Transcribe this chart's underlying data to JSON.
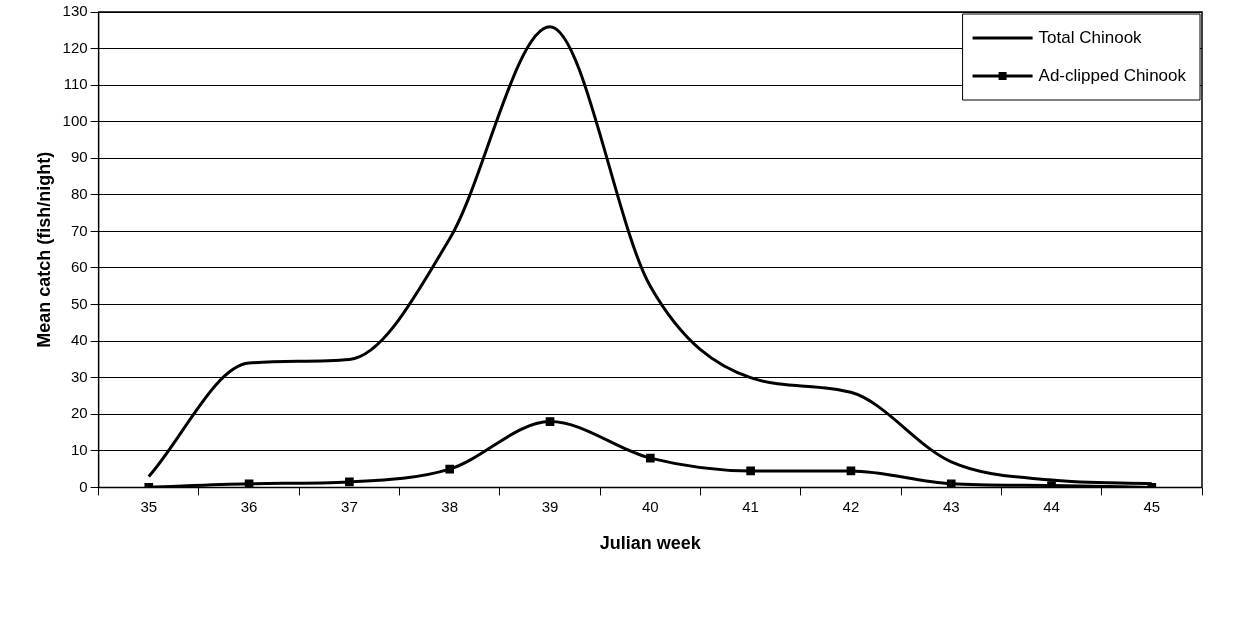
{
  "chart_data": {
    "type": "line",
    "xlabel": "Julian week",
    "ylabel": "Mean catch (fish/night)",
    "categories": [
      "35",
      "36",
      "37",
      "38",
      "39",
      "40",
      "41",
      "42",
      "43",
      "44",
      "45"
    ],
    "series": [
      {
        "name": "Total Chinook",
        "color": "#000000",
        "marker": "none",
        "values": [
          3,
          34,
          35,
          68,
          126,
          55,
          30,
          26,
          7,
          2,
          1
        ]
      },
      {
        "name": "Ad-clipped Chinook",
        "color": "#000000",
        "marker": "square",
        "values": [
          0,
          1,
          1.5,
          5,
          18,
          8,
          4.5,
          4.5,
          1,
          0.5,
          0
        ]
      }
    ],
    "ylim": [
      0,
      130
    ],
    "yticks": [
      0,
      10,
      20,
      30,
      40,
      50,
      60,
      70,
      80,
      90,
      100,
      110,
      120,
      130
    ],
    "grid": "y",
    "legend": "top right",
    "line_style": "solid"
  }
}
